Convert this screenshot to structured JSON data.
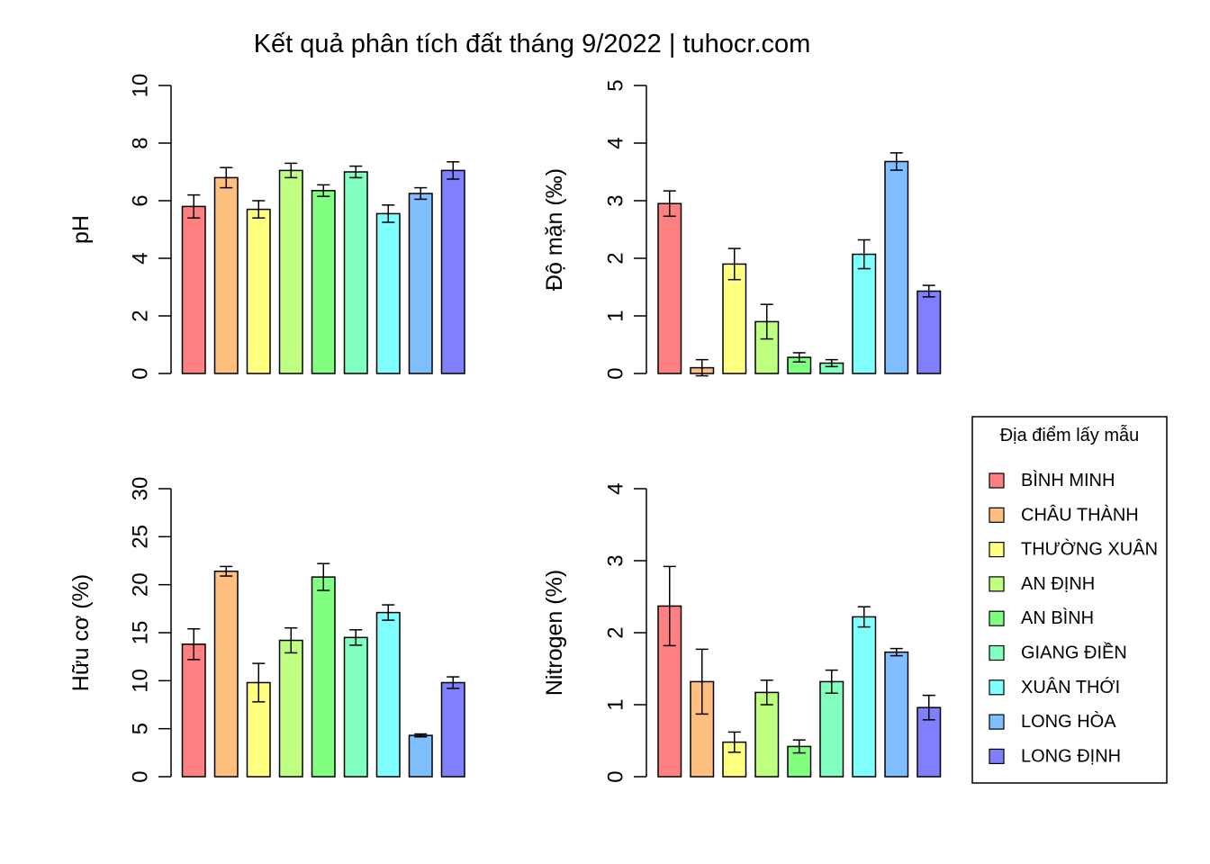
{
  "title": "Kết quả phân tích đất tháng 9/2022 | tuhocr.com",
  "legend": {
    "title": "Địa điểm lấy mẫu",
    "placement": "right",
    "items": [
      {
        "label": "BÌNH MINH",
        "color": "#ff8080"
      },
      {
        "label": "CHÂU THÀNH",
        "color": "#ffbf80"
      },
      {
        "label": "THƯỜNG XUÂN",
        "color": "#ffff80"
      },
      {
        "label": "AN ĐỊNH",
        "color": "#bfff80"
      },
      {
        "label": "AN BÌNH",
        "color": "#80ff80"
      },
      {
        "label": "GIANG ĐIỀN",
        "color": "#80ffbf"
      },
      {
        "label": "XUÂN THỚI",
        "color": "#80ffff"
      },
      {
        "label": "LONG HÒA",
        "color": "#80bfff"
      },
      {
        "label": "LONG ĐỊNH",
        "color": "#8080ff"
      }
    ]
  },
  "chart_data": [
    {
      "type": "bar",
      "ylabel": "pH",
      "ylim": [
        0,
        10
      ],
      "yticks": [
        0,
        2,
        4,
        6,
        8,
        10
      ],
      "categories": [
        "BÌNH MINH",
        "CHÂU THÀNH",
        "THƯỜNG XUÂN",
        "AN ĐỊNH",
        "AN BÌNH",
        "GIANG ĐIỀN",
        "XUÂN THỚI",
        "LONG HÒA",
        "LONG ĐỊNH"
      ],
      "values": [
        5.8,
        6.8,
        5.7,
        7.05,
        6.35,
        7.0,
        5.55,
        6.25,
        7.05
      ],
      "errors": [
        0.4,
        0.35,
        0.3,
        0.25,
        0.2,
        0.2,
        0.3,
        0.2,
        0.3
      ]
    },
    {
      "type": "bar",
      "ylabel": "Độ mặn (‰)",
      "ylim": [
        0,
        5
      ],
      "yticks": [
        0,
        1,
        2,
        3,
        4,
        5
      ],
      "categories": [
        "BÌNH MINH",
        "CHÂU THÀNH",
        "THƯỜNG XUÂN",
        "AN ĐỊNH",
        "AN BÌNH",
        "GIANG ĐIỀN",
        "XUÂN THỚI",
        "LONG HÒA",
        "LONG ĐỊNH"
      ],
      "values": [
        2.95,
        0.1,
        1.9,
        0.9,
        0.28,
        0.18,
        2.07,
        3.68,
        1.43
      ],
      "errors": [
        0.22,
        0.14,
        0.27,
        0.3,
        0.08,
        0.06,
        0.25,
        0.15,
        0.1
      ]
    },
    {
      "type": "bar",
      "ylabel": "Hữu cơ (%)",
      "ylim": [
        0,
        30
      ],
      "yticks": [
        0,
        5,
        10,
        15,
        20,
        25,
        30
      ],
      "categories": [
        "BÌNH MINH",
        "CHÂU THÀNH",
        "THƯỜNG XUÂN",
        "AN ĐỊNH",
        "AN BÌNH",
        "GIANG ĐIỀN",
        "XUÂN THỚI",
        "LONG HÒA",
        "LONG ĐỊNH"
      ],
      "values": [
        13.8,
        21.4,
        9.8,
        14.2,
        20.8,
        14.5,
        17.1,
        4.3,
        9.8
      ],
      "errors": [
        1.6,
        0.5,
        2.0,
        1.3,
        1.4,
        0.8,
        0.8,
        0.15,
        0.6
      ]
    },
    {
      "type": "bar",
      "ylabel": "Nitrogen (%)",
      "ylim": [
        0,
        4
      ],
      "yticks": [
        0,
        1,
        2,
        3,
        4
      ],
      "categories": [
        "BÌNH MINH",
        "CHÂU THÀNH",
        "THƯỜNG XUÂN",
        "AN ĐỊNH",
        "AN BÌNH",
        "GIANG ĐIỀN",
        "XUÂN THỚI",
        "LONG HÒA",
        "LONG ĐỊNH"
      ],
      "values": [
        2.37,
        1.32,
        0.48,
        1.17,
        0.42,
        1.32,
        2.22,
        1.73,
        0.96
      ],
      "errors": [
        0.55,
        0.45,
        0.14,
        0.17,
        0.09,
        0.16,
        0.14,
        0.05,
        0.17
      ]
    }
  ]
}
